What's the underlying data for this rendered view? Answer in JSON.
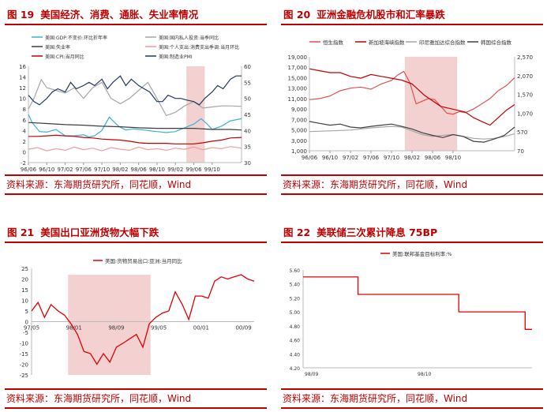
{
  "panels": [
    {
      "num": "图 19",
      "title": "美国经济、消费、通胀、失业率情况",
      "source": "资料来源：东海期货研究所，同花顺，Wind"
    },
    {
      "num": "图 20",
      "title": "亚洲金融危机股市和汇率暴跌",
      "source": "资料来源：东海期货研究所，同花顺，Wind"
    },
    {
      "num": "图 21",
      "title": "美国出口亚洲货物大幅下跌",
      "source": "资料来源：东海期货研究所，同花顺，Wind"
    },
    {
      "num": "图 22",
      "title": "美联储三次累计降息 75BP",
      "source": "资料来源：东海期货研究所，同花顺，Wind"
    }
  ],
  "colors": {
    "accent": "#c00000",
    "shade": "#f2c9c9"
  },
  "chart_data": [
    {
      "type": "line",
      "x_ticks": [
        "96/06",
        "96/10",
        "97/02",
        "97/06",
        "97/10",
        "98/02",
        "98/06",
        "98/10",
        "99/02",
        "99/06",
        "99/10"
      ],
      "y_left_ticks": [
        "-2",
        "0",
        "2",
        "4",
        "6",
        "8",
        "10",
        "12",
        "14",
        "16"
      ],
      "y_right_ticks": [
        "30",
        "35",
        "40",
        "45",
        "50",
        "55",
        "60"
      ],
      "ylim": [
        -2,
        16
      ],
      "y2lim": [
        30,
        60
      ],
      "shade": [
        8.6,
        9.6
      ],
      "legend": [
        "美国:GDP:不变价:环比折年率",
        "美国:国内私人投资:当季同比",
        "美国:失业率",
        "美国:个人支出:消费支出季调:当月环比",
        "美国:CPI:当月同比",
        "美国:制造业PMI"
      ],
      "series": [
        {
          "name": "美国:GDP:不变价:环比折年率",
          "color": "#37b4d4",
          "axis": "left",
          "x": [
            0,
            0.2,
            0.6,
            1,
            1.5,
            2,
            2.5,
            3,
            3.3,
            3.6,
            4,
            4.4,
            4.9,
            5.3,
            5.7,
            6,
            6.3,
            6.7,
            7,
            7.5,
            8,
            8.5,
            9,
            9.4,
            9.7,
            10,
            10.5,
            11,
            11.6
          ],
          "values": [
            7,
            5.5,
            3.8,
            3.7,
            4.2,
            3,
            3,
            3.2,
            2.8,
            3,
            4,
            6.5,
            4.8,
            4.1,
            4.3,
            4.2,
            4.1,
            3.9,
            3.8,
            3.6,
            3.8,
            4.5,
            5.2,
            6.2,
            5.3,
            4.2,
            4.8,
            5.8,
            6.2
          ]
        },
        {
          "name": "美国:国内私人投资:当季同比",
          "color": "#a6a6a6",
          "axis": "left",
          "x": [
            0,
            0.3,
            0.7,
            1,
            1.5,
            2,
            2.5,
            3,
            3.5,
            4,
            4.5,
            5,
            5.5,
            6,
            6.5,
            7,
            7.5,
            8,
            8.5,
            9,
            9.5,
            10,
            10.5,
            11,
            11.6
          ],
          "values": [
            8,
            10,
            13.5,
            12,
            11.5,
            11,
            12,
            10,
            12,
            13,
            10,
            9,
            10,
            11.5,
            13,
            10,
            6.8,
            7.4,
            8.6,
            9.4,
            8.2,
            8.4,
            8.6,
            8.6,
            8.5
          ]
        },
        {
          "name": "美国:失业率",
          "color": "#3d3d3d",
          "axis": "left",
          "x": [
            0,
            1,
            2,
            3,
            4,
            5,
            6,
            7,
            8,
            9,
            10,
            11,
            11.6
          ],
          "values": [
            5.5,
            5.3,
            5.1,
            5,
            4.8,
            4.7,
            4.5,
            4.4,
            4.4,
            4.4,
            4.2,
            4.2,
            4.1
          ]
        },
        {
          "name": "美国:个人支出:消费支出季调:当月环比",
          "color": "#ef9d9d",
          "axis": "left",
          "x": [
            0,
            0.5,
            1,
            1.5,
            2,
            2.5,
            3,
            3.5,
            4,
            4.5,
            5,
            5.5,
            6,
            6.5,
            7,
            7.5,
            8,
            8.5,
            9,
            9.5,
            10,
            10.5,
            11,
            11.6
          ],
          "values": [
            0.5,
            0.8,
            0.2,
            0.6,
            0.3,
            0.9,
            0.4,
            0.7,
            0.2,
            0.8,
            0.5,
            0.3,
            0.9,
            0.4,
            0.6,
            0.3,
            0.7,
            0.5,
            0.9,
            0.4,
            0.8,
            0.6,
            1,
            0.7
          ]
        },
        {
          "name": "美国:CPI:当月同比",
          "color": "#c00000",
          "axis": "left",
          "x": [
            0,
            0.5,
            1,
            1.5,
            2,
            2.5,
            3,
            3.5,
            4,
            4.5,
            5,
            5.5,
            6,
            6.5,
            7,
            7.5,
            8,
            8.5,
            9,
            9.5,
            10,
            10.5,
            11,
            11.6
          ],
          "values": [
            2.9,
            2.9,
            3,
            3.1,
            3,
            2.9,
            2.7,
            2.6,
            2.4,
            2.3,
            2.2,
            2,
            1.7,
            1.6,
            1.6,
            1.6,
            1.5,
            1.5,
            1.5,
            1.7,
            2,
            2.2,
            2.6,
            2.7
          ]
        },
        {
          "name": "美国:制造业PMI",
          "color": "#1f3864",
          "axis": "right",
          "x": [
            0,
            0.3,
            0.6,
            1,
            1.3,
            1.6,
            2,
            2.3,
            2.6,
            3,
            3.3,
            3.6,
            4,
            4.3,
            4.6,
            5,
            5.3,
            5.6,
            6,
            6.3,
            6.6,
            7,
            7.3,
            7.6,
            8,
            8.3,
            8.6,
            9,
            9.3,
            9.6,
            10,
            10.3,
            10.6,
            11,
            11.3,
            11.6
          ],
          "values": [
            51,
            49,
            48,
            50,
            52,
            53,
            52,
            55,
            53,
            54,
            55,
            54,
            56,
            53,
            55,
            57,
            54,
            56,
            54,
            53,
            52,
            49,
            49,
            51,
            50,
            50,
            49.5,
            49,
            48,
            50,
            52,
            54,
            53,
            56,
            57,
            57
          ]
        }
      ]
    },
    {
      "type": "line",
      "x_ticks": [
        "96/06",
        "96/10",
        "97/02",
        "97/06",
        "97/10",
        "98/02",
        "98/06",
        "98/10"
      ],
      "y_left_ticks": [
        "1,000",
        "3,000",
        "5,000",
        "7,000",
        "9,000",
        "11,000",
        "13,000",
        "15,000",
        "17,000",
        "19,000"
      ],
      "y_right_ticks": [
        "70",
        "570",
        "1,070",
        "1,570",
        "2,070",
        "2,570"
      ],
      "ylim": [
        1000,
        19000
      ],
      "y2lim": [
        70,
        2570
      ],
      "shade": [
        4.65,
        7.2
      ],
      "legend": [
        "恒生指数",
        "新加坡海峡指数",
        "印尼雅加达综合指数",
        "韩国综合指数"
      ],
      "series": [
        {
          "name": "恒生指数",
          "color": "#e05050",
          "axis": "left",
          "x": [
            0,
            0.5,
            1,
            1.5,
            2,
            2.5,
            3,
            3.5,
            4,
            4.3,
            4.6,
            4.9,
            5.2,
            5.5,
            5.8,
            6.1,
            6.4,
            6.7,
            7,
            7.3,
            7.6,
            8,
            8.4,
            8.8,
            9.2,
            9.6,
            10
          ],
          "values": [
            10800,
            11000,
            11500,
            12500,
            13000,
            13200,
            12800,
            13800,
            14500,
            15500,
            16200,
            14000,
            10000,
            10500,
            11000,
            10800,
            9500,
            8200,
            8000,
            8500,
            8300,
            9000,
            10000,
            11000,
            12500,
            13500,
            15000
          ]
        },
        {
          "name": "新加坡海峡指数",
          "color": "#c00000",
          "axis": "right",
          "x": [
            0,
            0.5,
            1,
            1.5,
            2,
            2.5,
            3,
            3.5,
            4,
            4.5,
            5,
            5.3,
            5.6,
            6,
            6.4,
            6.8,
            7.2,
            7.6,
            8,
            8.4,
            8.8,
            9.2,
            9.6,
            10
          ],
          "values": [
            2250,
            2200,
            2150,
            2150,
            2050,
            2000,
            2100,
            2050,
            2000,
            1950,
            1850,
            1700,
            1550,
            1400,
            1250,
            1200,
            1150,
            1100,
            950,
            850,
            750,
            950,
            1150,
            1300
          ]
        },
        {
          "name": "印尼雅加达综合指数",
          "color": "#a6a6a6",
          "axis": "right",
          "x": [
            0,
            1,
            2,
            3,
            4,
            4.5,
            5,
            5.5,
            6,
            6.5,
            7,
            7.5,
            8,
            8.5,
            9,
            9.5,
            10
          ],
          "values": [
            580,
            600,
            620,
            680,
            720,
            700,
            600,
            500,
            450,
            480,
            500,
            450,
            400,
            380,
            400,
            450,
            520
          ]
        },
        {
          "name": "韩国综合指数",
          "color": "#404040",
          "axis": "right",
          "x": [
            0,
            0.5,
            1,
            1.5,
            2,
            2.5,
            3,
            3.5,
            4,
            4.5,
            5,
            5.5,
            6,
            6.5,
            7,
            7.5,
            8,
            8.5,
            9,
            9.5,
            10
          ],
          "values": [
            850,
            800,
            750,
            780,
            700,
            680,
            720,
            750,
            780,
            720,
            650,
            550,
            480,
            420,
            500,
            450,
            320,
            300,
            380,
            480,
            700
          ]
        }
      ]
    },
    {
      "type": "line",
      "x_ticks": [
        "97/05",
        "98/01",
        "98/09",
        "99/05",
        "00/01",
        "00/09"
      ],
      "y_ticks": [
        "-25",
        "-20",
        "-15",
        "-10",
        "-5",
        "0",
        "5",
        "10",
        "15",
        "20",
        "25"
      ],
      "ylim": [
        -25,
        25
      ],
      "shade": [
        0.62,
        2.02
      ],
      "legend": [
        "美国:货物贸易出口:亚洲:当月同比"
      ],
      "series": [
        {
          "name": "美国:货物贸易出口:亚洲:当月同比",
          "color": "#e00000",
          "x": [
            0,
            0.11,
            0.22,
            0.33,
            0.45,
            0.56,
            0.67,
            0.78,
            0.89,
            1,
            1.11,
            1.22,
            1.33,
            1.44,
            1.56,
            1.67,
            1.78,
            1.89,
            2,
            2.11,
            2.22,
            2.33,
            2.44,
            2.56,
            2.67,
            2.78,
            2.89,
            3,
            3.11,
            3.22,
            3.33,
            3.44,
            3.56,
            3.67,
            3.78
          ],
          "values": [
            5,
            9,
            2,
            8,
            5,
            3,
            -1,
            -6,
            -14,
            -15,
            -20,
            -15,
            -19,
            -12,
            -10,
            -8,
            -6,
            -12,
            -1,
            2,
            4,
            5,
            14,
            8,
            1,
            12,
            12,
            11,
            19,
            21,
            20,
            21,
            22,
            20,
            19
          ]
        }
      ]
    },
    {
      "type": "line",
      "x_ticks": [
        "98/09",
        "98/10"
      ],
      "y_ticks": [
        "4.20",
        "4.40",
        "4.60",
        "4.80",
        "5.00",
        "5.20",
        "5.40",
        "5.60"
      ],
      "ylim": [
        4.2,
        5.6
      ],
      "legend": [
        "美国:联邦基金目标利率:%"
      ],
      "series": [
        {
          "name": "美国:联邦基金目标利率:%",
          "color": "#e00000",
          "step": true,
          "x": [
            0,
            0.11,
            0.24,
            0.45,
            0.68,
            0.97,
            1
          ],
          "values": [
            5.5,
            5.5,
            5.25,
            5.25,
            5.0,
            4.75,
            4.75
          ]
        }
      ]
    }
  ]
}
